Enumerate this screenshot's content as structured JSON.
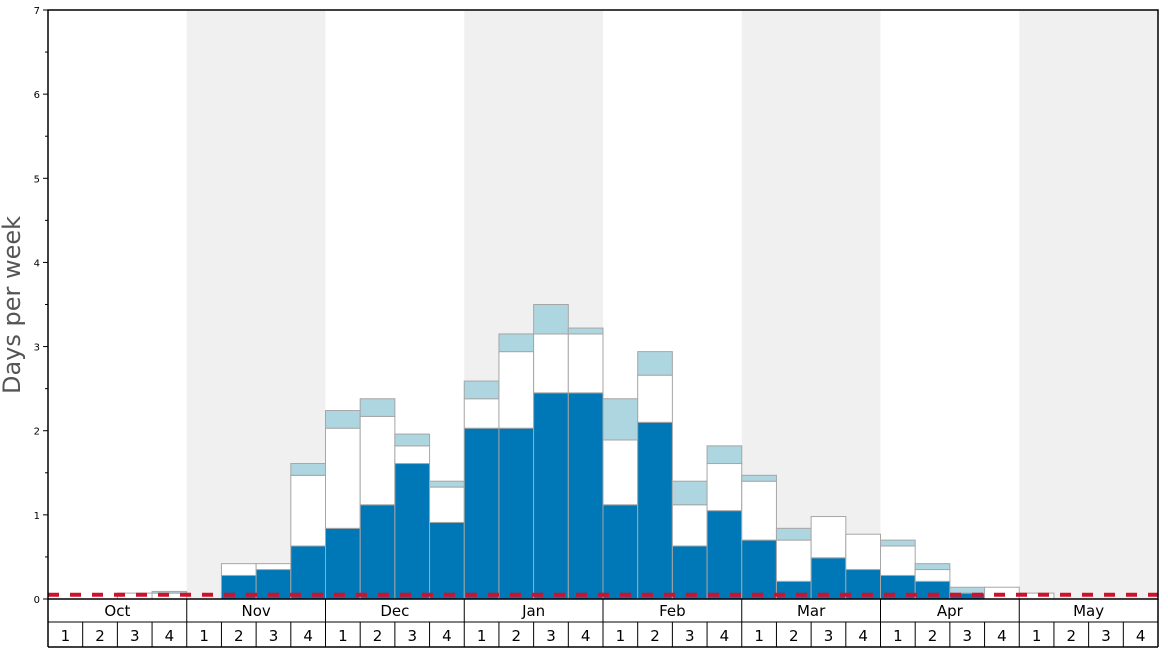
{
  "chart_data": {
    "type": "bar",
    "stacked": true,
    "ylabel": "Days per week",
    "xlabel": "",
    "ylim": [
      0,
      7
    ],
    "y_ticks": [
      "0",
      "1",
      "2",
      "3",
      "4",
      "5",
      "6",
      "7"
    ],
    "months": [
      "Oct",
      "Nov",
      "Dec",
      "Jan",
      "Feb",
      "Mar",
      "Apr",
      "May"
    ],
    "weeks": [
      "1",
      "2",
      "3",
      "4"
    ],
    "reference_line": {
      "value": 0.05,
      "color": "#d0112b",
      "style": "dashed"
    },
    "series": [
      {
        "color": "#0077b6",
        "values": [
          0,
          0,
          0,
          0,
          0,
          0.28,
          0.35,
          0.63,
          0.84,
          1.12,
          1.61,
          0.91,
          2.03,
          2.03,
          2.45,
          2.45,
          1.12,
          2.1,
          0.63,
          1.05,
          0.7,
          0.21,
          0.49,
          0.35,
          0.28,
          0.21,
          0.07,
          0,
          0,
          0,
          0,
          0
        ]
      },
      {
        "color": "#ffffff",
        "values": [
          0,
          0,
          0.07,
          0.07,
          0,
          0.14,
          0.07,
          0.84,
          1.19,
          1.05,
          0.21,
          0.42,
          0.35,
          0.91,
          0.7,
          0.7,
          0.77,
          0.56,
          0.49,
          0.56,
          0.7,
          0.49,
          0.49,
          0.42,
          0.35,
          0.14,
          0,
          0.14,
          0.07,
          0,
          0,
          0
        ]
      },
      {
        "color": "#aed6e0",
        "values": [
          0,
          0,
          0,
          0.02,
          0,
          0,
          0,
          0.14,
          0.21,
          0.21,
          0.14,
          0.07,
          0.21,
          0.21,
          0.35,
          0.07,
          0.49,
          0.28,
          0.28,
          0.21,
          0.07,
          0.14,
          0,
          0,
          0.07,
          0.07,
          0.07,
          0,
          0,
          0,
          0,
          0
        ]
      }
    ]
  },
  "colors": {
    "shade_band": "#f0f0f0",
    "bar_outline": "#a6a6a6",
    "axis": "#000000"
  }
}
